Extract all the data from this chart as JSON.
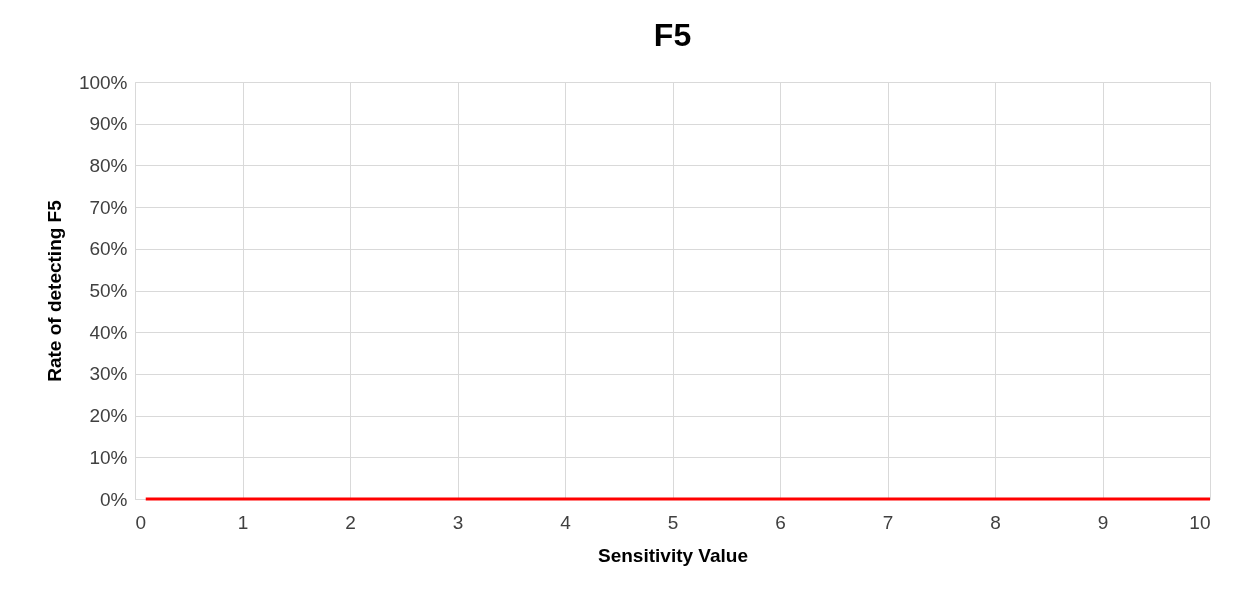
{
  "chart_data": {
    "type": "line",
    "title": "F5",
    "xlabel": "Sensitivity Value",
    "ylabel": "Rate of detecting F5",
    "x": [
      0.1,
      10
    ],
    "series": [
      {
        "color": "#ff0000",
        "values": [
          0,
          0
        ]
      }
    ],
    "xlim": [
      0,
      10
    ],
    "xticks": [
      0,
      1,
      2,
      3,
      4,
      5,
      6,
      7,
      8,
      9,
      10
    ],
    "ylim": [
      0,
      100
    ],
    "yticks": [
      {
        "value": 0,
        "label": "0%"
      },
      {
        "value": 10,
        "label": "10%"
      },
      {
        "value": 20,
        "label": "20%"
      },
      {
        "value": 30,
        "label": "30%"
      },
      {
        "value": 40,
        "label": "40%"
      },
      {
        "value": 50,
        "label": "50%"
      },
      {
        "value": 60,
        "label": "60%"
      },
      {
        "value": 70,
        "label": "70%"
      },
      {
        "value": 80,
        "label": "80%"
      },
      {
        "value": 90,
        "label": "90%"
      },
      {
        "value": 100,
        "label": "100%"
      }
    ],
    "grid": true,
    "marker": "none",
    "line_style": "solid"
  }
}
